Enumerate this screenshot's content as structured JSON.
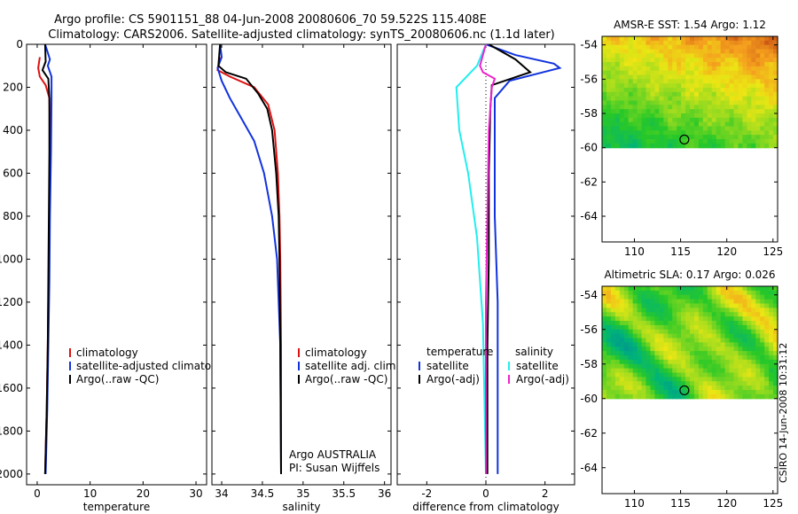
{
  "header": {
    "line1": "Argo profile: CS 5901151_88 04-Jun-2008 20080606_70 59.522S 115.408E",
    "line2": "Climatology: CARS2006. Satellite-adjusted climatology: synTS_20080606.nc (1.1d later)"
  },
  "colors": {
    "red": "#dd1111",
    "blue": "#1133dd",
    "black": "#000000",
    "cyan": "#22eeee",
    "magenta": "#ee22cc"
  },
  "chart_data": [
    {
      "id": "temperature",
      "type": "line",
      "xlabel": "temperature",
      "ylabel": "",
      "xlim": [
        -2,
        32
      ],
      "ylim": [
        2050,
        0
      ],
      "xticks": [
        0,
        10,
        20,
        30
      ],
      "yticks": [
        0,
        200,
        400,
        600,
        800,
        1000,
        1200,
        1400,
        1600,
        1800,
        2000
      ],
      "series": [
        {
          "name": "climatology",
          "color": "red",
          "points": [
            [
              0.5,
              60
            ],
            [
              0.2,
              110
            ],
            [
              0.5,
              150
            ],
            [
              1.6,
              190
            ],
            [
              2.3,
              250
            ],
            [
              2.4,
              400
            ],
            [
              2.3,
              700
            ],
            [
              2.2,
              1000
            ],
            [
              2.0,
              1400
            ],
            [
              1.8,
              1700
            ],
            [
              1.5,
              2000
            ]
          ]
        },
        {
          "name": "satellite-adjusted climatology",
          "color": "blue",
          "points": [
            [
              1.5,
              0
            ],
            [
              2.4,
              70
            ],
            [
              2.0,
              100
            ],
            [
              2.7,
              150
            ],
            [
              2.7,
              250
            ],
            [
              2.6,
              500
            ],
            [
              2.4,
              800
            ],
            [
              2.3,
              1100
            ],
            [
              2.1,
              1400
            ],
            [
              1.9,
              1700
            ],
            [
              1.6,
              2000
            ]
          ]
        },
        {
          "name": "Argo(..raw -QC)",
          "color": "black",
          "points": [
            [
              1.5,
              0
            ],
            [
              1.6,
              80
            ],
            [
              1.0,
              120
            ],
            [
              2.1,
              160
            ],
            [
              2.3,
              250
            ],
            [
              2.3,
              500
            ],
            [
              2.2,
              800
            ],
            [
              2.1,
              1100
            ],
            [
              2.0,
              1400
            ],
            [
              1.8,
              1700
            ],
            [
              1.5,
              2000
            ]
          ]
        }
      ],
      "legend": [
        "climatology",
        "satellite-adjusted climatology",
        "Argo(..raw -QC)"
      ],
      "legend_position": "lower-right"
    },
    {
      "id": "salinity",
      "type": "line",
      "xlabel": "salinity",
      "ylabel": "",
      "xlim": [
        33.88,
        36.08
      ],
      "ylim": [
        2050,
        0
      ],
      "xticks": [
        34,
        34.5,
        35,
        35.5,
        36
      ],
      "yticks": [
        0,
        200,
        400,
        600,
        800,
        1000,
        1200,
        1400,
        1600,
        1800,
        2000
      ],
      "series": [
        {
          "name": "climatology",
          "color": "red",
          "points": [
            [
              33.98,
              60
            ],
            [
              33.95,
              120
            ],
            [
              34.1,
              150
            ],
            [
              34.4,
              200
            ],
            [
              34.57,
              280
            ],
            [
              34.65,
              400
            ],
            [
              34.69,
              600
            ],
            [
              34.71,
              800
            ],
            [
              34.72,
              1000
            ],
            [
              34.73,
              1400
            ],
            [
              34.73,
              2000
            ]
          ]
        },
        {
          "name": "satellite adj. clim.",
          "color": "blue",
          "points": [
            [
              33.98,
              0
            ],
            [
              34.0,
              60
            ],
            [
              33.95,
              110
            ],
            [
              34.0,
              170
            ],
            [
              34.1,
              250
            ],
            [
              34.25,
              350
            ],
            [
              34.4,
              450
            ],
            [
              34.52,
              600
            ],
            [
              34.62,
              800
            ],
            [
              34.68,
              1000
            ],
            [
              34.72,
              1400
            ],
            [
              34.73,
              2000
            ]
          ]
        },
        {
          "name": "Argo(..raw -QC)",
          "color": "black",
          "points": [
            [
              33.98,
              0
            ],
            [
              33.96,
              100
            ],
            [
              34.05,
              130
            ],
            [
              34.3,
              160
            ],
            [
              34.45,
              230
            ],
            [
              34.56,
              300
            ],
            [
              34.62,
              400
            ],
            [
              34.67,
              600
            ],
            [
              34.7,
              800
            ],
            [
              34.71,
              1000
            ],
            [
              34.72,
              1400
            ],
            [
              34.73,
              2000
            ]
          ]
        }
      ],
      "legend": [
        "climatology",
        "satellite adj. clim.",
        "Argo(..raw -QC)"
      ],
      "legend_position": "lower-right",
      "annotations": [
        "Argo AUSTRALIA",
        "PI: Susan Wijffels"
      ]
    },
    {
      "id": "difference",
      "type": "line",
      "xlabel": "difference from climatology",
      "ylabel": "",
      "xlim": [
        -3,
        3
      ],
      "ylim": [
        2050,
        0
      ],
      "xticks": [
        -2,
        0,
        2
      ],
      "yticks": [
        0,
        200,
        400,
        600,
        800,
        1000,
        1200,
        1400,
        1600,
        1800,
        2000
      ],
      "series": [
        {
          "name": "temperature satellite",
          "color": "blue",
          "points": [
            [
              0,
              0
            ],
            [
              1.0,
              50
            ],
            [
              2.3,
              90
            ],
            [
              2.5,
              110
            ],
            [
              0.8,
              170
            ],
            [
              0.3,
              250
            ],
            [
              0.3,
              500
            ],
            [
              0.3,
              800
            ],
            [
              0.4,
              1200
            ],
            [
              0.4,
              1600
            ],
            [
              0.4,
              2000
            ]
          ]
        },
        {
          "name": "temperature Argo(-adj)",
          "color": "black",
          "points": [
            [
              0.1,
              0
            ],
            [
              1.0,
              70
            ],
            [
              1.5,
              130
            ],
            [
              0.2,
              190
            ],
            [
              0.15,
              300
            ],
            [
              0.1,
              600
            ],
            [
              0.1,
              1000
            ],
            [
              0.05,
              1400
            ],
            [
              0.05,
              2000
            ]
          ]
        },
        {
          "name": "salinity satellite",
          "color": "cyan",
          "points": [
            [
              0,
              0
            ],
            [
              -0.3,
              100
            ],
            [
              -1.0,
              200
            ],
            [
              -0.9,
              400
            ],
            [
              -0.6,
              600
            ],
            [
              -0.3,
              900
            ],
            [
              -0.1,
              1300
            ],
            [
              0,
              2000
            ]
          ]
        },
        {
          "name": "salinity Argo(-adj)",
          "color": "magenta",
          "points": [
            [
              0,
              0
            ],
            [
              -0.2,
              100
            ],
            [
              -0.1,
              130
            ],
            [
              0.3,
              160
            ],
            [
              0.2,
              200
            ],
            [
              0.1,
              400
            ],
            [
              0.05,
              800
            ],
            [
              0,
              1200
            ],
            [
              0,
              2000
            ]
          ]
        }
      ],
      "legend_headers": [
        "temperature",
        "salinity"
      ],
      "legend": [
        "satellite",
        "Argo(-adj)",
        "satellite",
        "Argo(-adj)"
      ],
      "legend_position": "lower-right"
    },
    {
      "id": "sst_map",
      "type": "heatmap",
      "title": "AMSR-E SST: 1.54 Argo: 1.12",
      "xlim": [
        106.5,
        125.5
      ],
      "ylim": [
        -65.5,
        -53.5
      ],
      "xticks": [
        110,
        115,
        120,
        125
      ],
      "yticks": [
        -54,
        -56,
        -58,
        -60,
        -62,
        -64
      ],
      "data_lat_range": [
        -60,
        -53.5
      ],
      "marker": {
        "lon": 115.408,
        "lat": -59.522
      }
    },
    {
      "id": "sla_map",
      "type": "heatmap",
      "title": "Altimetric SLA: 0.17 Argo: 0.026",
      "xlim": [
        106.5,
        125.5
      ],
      "ylim": [
        -65.5,
        -53.5
      ],
      "xticks": [
        110,
        115,
        120,
        125
      ],
      "yticks": [
        -54,
        -56,
        -58,
        -60,
        -62,
        -64
      ],
      "data_lat_range": [
        -60,
        -53.5
      ],
      "marker": {
        "lon": 115.408,
        "lat": -59.522
      }
    }
  ],
  "side_label": "CSIRO 14-Jun-2008 10:31:12"
}
